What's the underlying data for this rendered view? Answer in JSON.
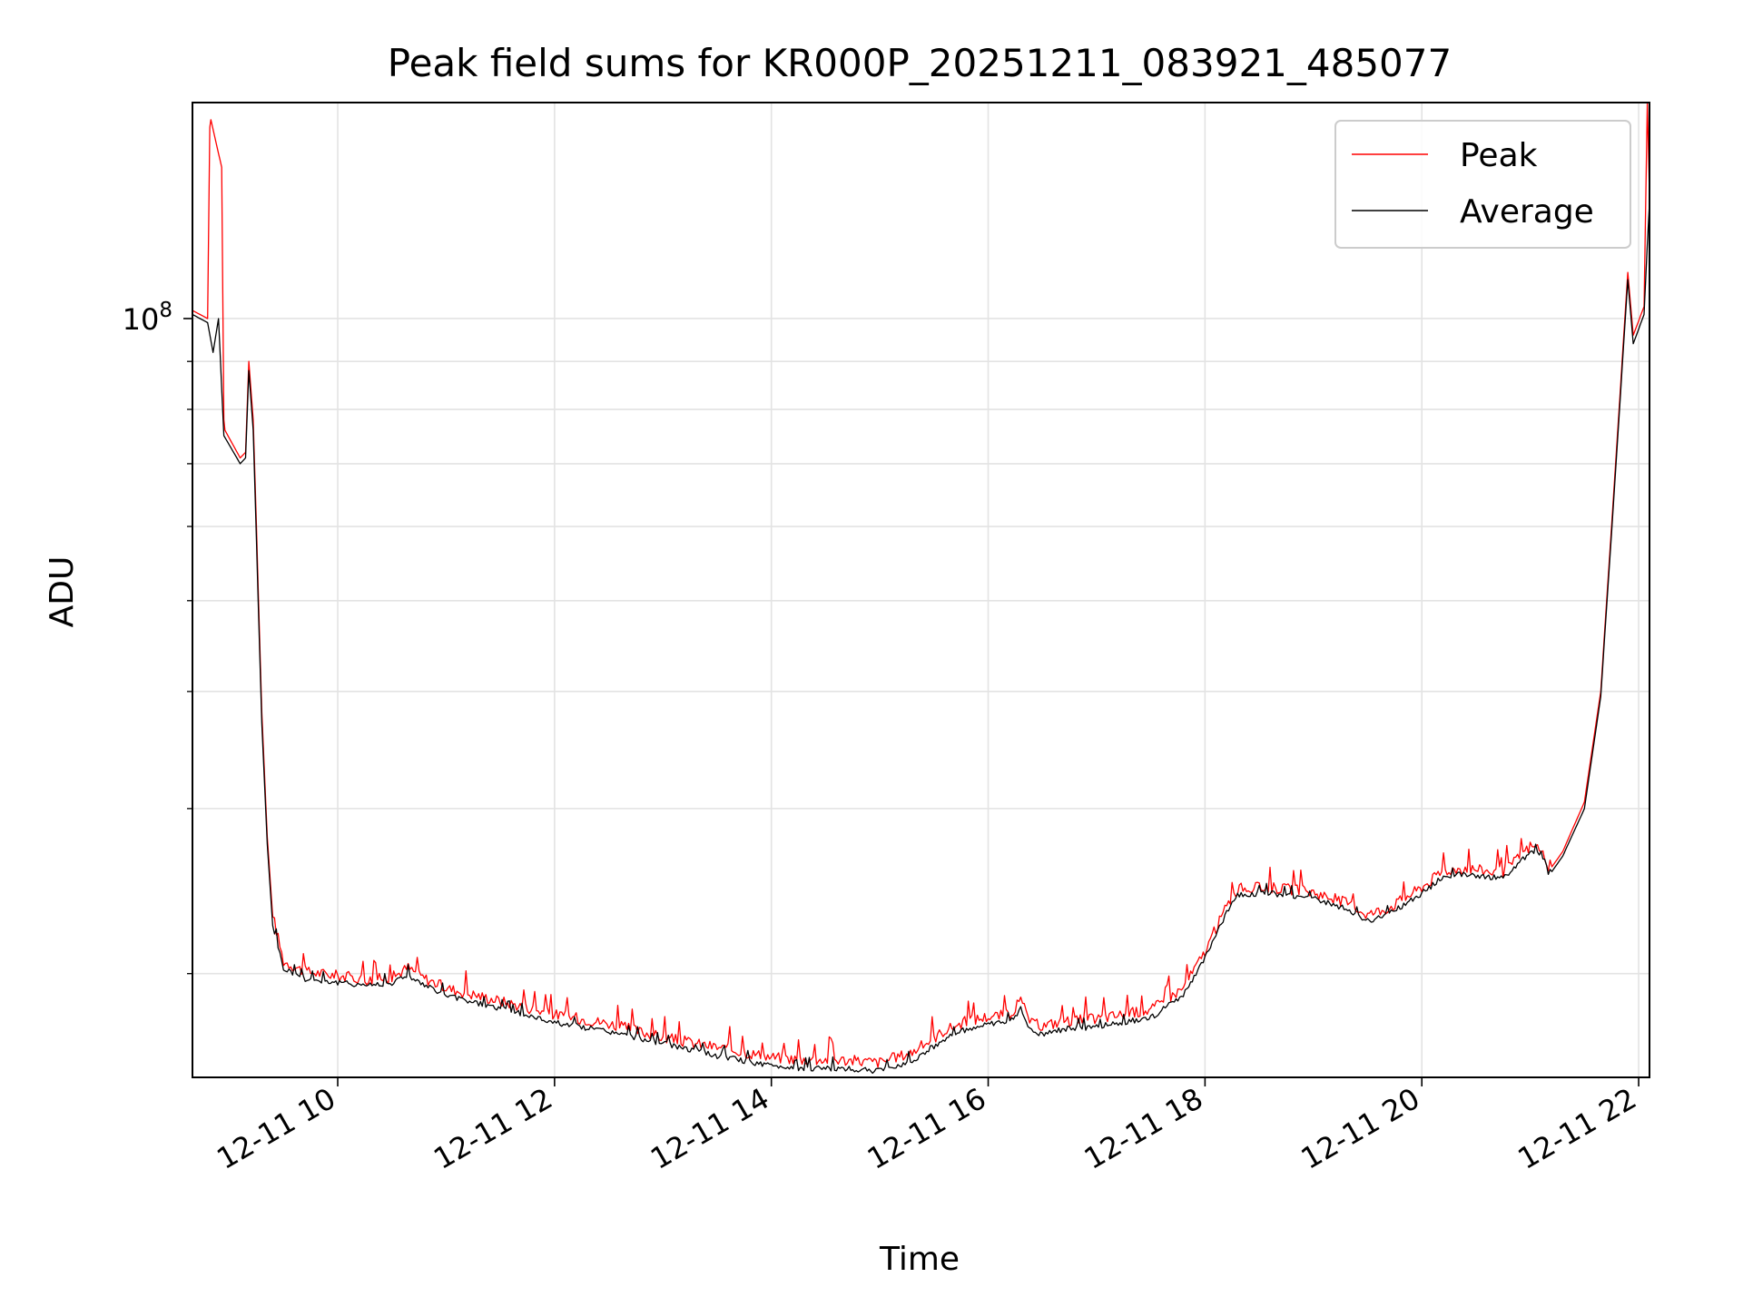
{
  "chart_data": {
    "type": "line",
    "title": "Peak field sums for KR000P_20251211_083921_485077",
    "xlabel": "Time",
    "ylabel": "ADU",
    "y_scale": "log",
    "ylim": [
      15500000,
      170000000
    ],
    "xlim_hours": [
      8.66,
      22.1
    ],
    "x_ticks": [
      {
        "hour": 10,
        "label": "12-11 10"
      },
      {
        "hour": 12,
        "label": "12-11 12"
      },
      {
        "hour": 14,
        "label": "12-11 14"
      },
      {
        "hour": 16,
        "label": "12-11 16"
      },
      {
        "hour": 18,
        "label": "12-11 18"
      },
      {
        "hour": 20,
        "label": "12-11 20"
      },
      {
        "hour": 22,
        "label": "12-11 22"
      }
    ],
    "y_major_ticks": [
      {
        "value": 100000000,
        "base": "10",
        "exp": "8"
      }
    ],
    "y_minor_ticks": [
      20000000,
      30000000,
      40000000,
      50000000,
      60000000,
      70000000,
      80000000,
      90000000
    ],
    "grid": true,
    "legend_position": "top-right",
    "series": [
      {
        "name": "Peak",
        "color": "#ff0000",
        "x": [
          8.66,
          8.8,
          8.82,
          8.83,
          8.9,
          8.93,
          8.95,
          8.96,
          9.1,
          9.15,
          9.18,
          9.22,
          9.25,
          9.3,
          9.35,
          9.4,
          9.5,
          9.7,
          10.0,
          10.3,
          10.5,
          10.65,
          10.75,
          11.0,
          11.5,
          12.0,
          12.5,
          13.0,
          13.5,
          14.0,
          14.3,
          14.6,
          15.0,
          15.3,
          15.6,
          15.8,
          16.0,
          16.2,
          16.3,
          16.4,
          16.5,
          16.7,
          17.0,
          17.5,
          17.8,
          18.0,
          18.2,
          18.3,
          18.6,
          19.0,
          19.3,
          19.5,
          19.7,
          20.0,
          20.2,
          20.4,
          20.6,
          20.75,
          20.9,
          21.0,
          21.1,
          21.15,
          21.2,
          21.3,
          21.5,
          21.65,
          21.75,
          21.9,
          21.95,
          22.05,
          22.08,
          22.1
        ],
        "y": [
          102000000,
          100000000,
          160000000,
          163000000,
          150000000,
          145000000,
          78000000,
          76000000,
          71000000,
          72000000,
          90000000,
          78000000,
          60000000,
          38000000,
          28000000,
          23000000,
          20500000,
          20000000,
          19800000,
          19600000,
          19700000,
          20200000,
          19800000,
          19200000,
          18600000,
          18000000,
          17600000,
          17000000,
          16600000,
          16200000,
          16100000,
          16100000,
          16000000,
          16400000,
          17300000,
          17700000,
          17900000,
          18000000,
          18600000,
          17600000,
          17500000,
          17700000,
          17800000,
          18200000,
          19200000,
          21000000,
          23500000,
          24500000,
          24600000,
          24300000,
          23700000,
          23000000,
          23400000,
          24600000,
          25600000,
          25800000,
          25600000,
          25500000,
          26500000,
          27200000,
          27100000,
          25800000,
          26000000,
          27000000,
          30500000,
          40000000,
          60000000,
          112000000,
          96000000,
          103000000,
          170000000,
          135000000
        ]
      },
      {
        "name": "Average",
        "color": "#000000",
        "x": [
          8.66,
          8.8,
          8.85,
          8.9,
          8.95,
          9.1,
          9.15,
          9.18,
          9.22,
          9.25,
          9.3,
          9.35,
          9.4,
          9.5,
          9.7,
          10.0,
          10.3,
          10.5,
          10.65,
          10.75,
          11.0,
          11.5,
          12.0,
          12.5,
          13.0,
          13.5,
          14.0,
          14.3,
          14.6,
          15.0,
          15.3,
          15.6,
          15.8,
          16.0,
          16.2,
          16.3,
          16.4,
          16.5,
          16.7,
          17.0,
          17.5,
          17.8,
          18.0,
          18.2,
          18.3,
          18.6,
          19.0,
          19.3,
          19.5,
          19.7,
          20.0,
          20.2,
          20.4,
          20.6,
          20.75,
          20.9,
          21.0,
          21.1,
          21.15,
          21.2,
          21.3,
          21.5,
          21.65,
          21.75,
          21.9,
          21.95,
          22.05,
          22.08,
          22.1
        ],
        "y": [
          101000000,
          99000000,
          92000000,
          100000000,
          75000000,
          70000000,
          71000000,
          88000000,
          76000000,
          58000000,
          37000000,
          27500000,
          22500000,
          20200000,
          19700000,
          19500000,
          19400000,
          19500000,
          19900000,
          19500000,
          18900000,
          18300000,
          17700000,
          17300000,
          16800000,
          16300000,
          15900000,
          15800000,
          15800000,
          15700000,
          16100000,
          17000000,
          17400000,
          17600000,
          17700000,
          18300000,
          17300000,
          17200000,
          17400000,
          17500000,
          17900000,
          18900000,
          20700000,
          23200000,
          24200000,
          24300000,
          24000000,
          23400000,
          22700000,
          23100000,
          24300000,
          25300000,
          25500000,
          25300000,
          25200000,
          26200000,
          26900000,
          26800000,
          25500000,
          25700000,
          26700000,
          30000000,
          39500000,
          59000000,
          110000000,
          94000000,
          101000000,
          120000000,
          133000000
        ]
      }
    ]
  }
}
